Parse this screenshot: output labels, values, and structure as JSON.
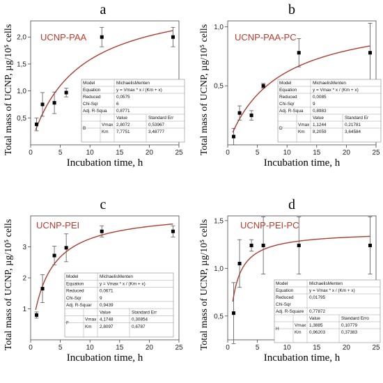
{
  "figure": {
    "panels": [
      "a",
      "b",
      "c",
      "d"
    ]
  },
  "colors": {
    "fit_curve": "#b03a2e",
    "panel_title": "#c0392b",
    "points": "#000000",
    "error_bars": "#555555",
    "axes": "#444444",
    "table_border": "#888888"
  },
  "chart_data": [
    {
      "type": "scatter",
      "panel_letter": "a",
      "annotation": "UCNP-PAA",
      "xlabel": "Incubation time, h",
      "ylabel": "Total mass of UCNP, µg/10⁵ cells",
      "xlim": [
        0,
        25
      ],
      "ylim": [
        0,
        2.3
      ],
      "xticks": [
        "0",
        "5",
        "10",
        "15",
        "20",
        "25"
      ],
      "yticks": [
        "0,5",
        "1,0",
        "1,5",
        "2,0"
      ],
      "ytick_values": [
        0.5,
        1.0,
        1.5,
        2.0
      ],
      "points": [
        {
          "x": 1,
          "y": 0.38,
          "err": 0.12
        },
        {
          "x": 2,
          "y": 0.75,
          "err": 0.22
        },
        {
          "x": 4,
          "y": 0.78,
          "err": 0.2
        },
        {
          "x": 6,
          "y": 0.97,
          "err": 0.08
        },
        {
          "x": 12,
          "y": 2.0,
          "err": 0.18
        },
        {
          "x": 24,
          "y": 2.0,
          "err": 0.18
        }
      ],
      "fit": {
        "model": "MichaelisMenten",
        "vmax": 2.8072,
        "km": 7.7751
      },
      "stats_table": {
        "model_label": "Model",
        "model_value": "MichaelisMenten",
        "equation_label": "Equation",
        "equation_value": "y = Vmax * x / (Km + x)",
        "chi_label": "Reduced Chi-Sqr",
        "chi_value": "0,0575",
        "chi_value2": "6",
        "r2_label": "Adj. R-Squa",
        "r2_value": "0,8771",
        "col_value": "Value",
        "col_err": "Standard Err",
        "row_group": "B",
        "vmax_label": "Vmax",
        "vmax_value": "2,8072",
        "vmax_err": "0,53967",
        "km_label": "Km",
        "km_value": "7,7751",
        "km_err": "3,48777"
      }
    },
    {
      "type": "scatter",
      "panel_letter": "b",
      "annotation": "UCNP-PAA-PC",
      "xlabel": "Incubation time, h",
      "ylabel": "Total mass of UCNP, µg/10⁵ cells",
      "xlim": [
        0,
        25
      ],
      "ylim": [
        0,
        1.05
      ],
      "xticks": [
        "0",
        "5",
        "10",
        "15",
        "20",
        "25"
      ],
      "yticks": [
        "0,5",
        "1,0"
      ],
      "ytick_values": [
        0.5,
        1.0
      ],
      "points": [
        {
          "x": 1,
          "y": 0.07,
          "err": 0.07
        },
        {
          "x": 2,
          "y": 0.27,
          "err": 0.06
        },
        {
          "x": 4,
          "y": 0.25,
          "err": 0.04
        },
        {
          "x": 6,
          "y": 0.5,
          "err": 0.02
        },
        {
          "x": 12,
          "y": 0.78,
          "err": 0.12
        },
        {
          "x": 24,
          "y": 0.78,
          "err": 0.25
        }
      ],
      "fit": {
        "model": "MichaelisMenten",
        "vmax": 1.1244,
        "km": 8.2059
      },
      "stats_table": {
        "model_label": "Model",
        "model_value": "MichaelisMenten",
        "equation_label": "Equation",
        "equation_value": "y = Vmax * x / (Km + x)",
        "chi_label": "Reduced Chi-Sqr",
        "chi_value": "0,0085",
        "chi_value2": "9",
        "r2_label": "Adj. R-Squa",
        "r2_value": "0,8983",
        "col_value": "Value",
        "col_err": "Standard Er",
        "row_group": "D",
        "vmax_label": "Vmax",
        "vmax_value": "1,1244",
        "vmax_err": "0,21781",
        "km_label": "Km",
        "km_value": "8,2059",
        "km_err": "3,64584"
      }
    },
    {
      "type": "scatter",
      "panel_letter": "c",
      "annotation": "UCNP-PEI",
      "xlabel": "Incubation time, h",
      "ylabel": "Total mass of UCNP, µg/10⁵ cells",
      "xlim": [
        0,
        25
      ],
      "ylim": [
        0,
        4.0
      ],
      "xticks": [
        "0",
        "5",
        "10",
        "15",
        "20",
        "25"
      ],
      "yticks": [
        "1",
        "2",
        "3"
      ],
      "ytick_values": [
        1,
        2,
        3
      ],
      "points": [
        {
          "x": 1,
          "y": 0.8,
          "err": 0.1
        },
        {
          "x": 2,
          "y": 1.65,
          "err": 0.45
        },
        {
          "x": 4,
          "y": 2.72,
          "err": 0.3
        },
        {
          "x": 6,
          "y": 2.97,
          "err": 0.45
        },
        {
          "x": 12,
          "y": 3.5,
          "err": 0.18
        },
        {
          "x": 24,
          "y": 3.5,
          "err": 0.18
        }
      ],
      "fit": {
        "model": "MichaelisMenten",
        "vmax": 4.1748,
        "km": 2.8097
      },
      "stats_table": {
        "model_label": "Model",
        "model_value": "MichaelisMenten",
        "equation_label": "Equation",
        "equation_value": "y = Vmax * x / (Km + x)",
        "chi_label": "Reduced Chi-Sqr",
        "chi_value": "0,0671",
        "chi_value2": "9",
        "r2_label": "Adj. R-Squar",
        "r2_value": "0,9439",
        "col_value": "Value",
        "col_err": "Standard Err",
        "row_group": "F",
        "vmax_label": "Vmax",
        "vmax_value": "4,1748",
        "vmax_err": "0,30854",
        "km_label": "Km",
        "km_value": "2,8097",
        "km_err": "0,6787"
      }
    },
    {
      "type": "scatter",
      "panel_letter": "d",
      "annotation": "UCNP-PEI-PC",
      "xlabel": "Incubation time, h",
      "ylabel": "Total mass of UCNP, µg/10⁵ cells",
      "xlim": [
        0,
        25
      ],
      "ylim": [
        0.25,
        1.55
      ],
      "xticks": [
        "0",
        "5",
        "10",
        "15",
        "20",
        "25"
      ],
      "yticks": [
        "0,5",
        "1,0",
        "1,5"
      ],
      "ytick_values": [
        0.5,
        1.0,
        1.5
      ],
      "points": [
        {
          "x": 1,
          "y": 0.53,
          "err": 0.32
        },
        {
          "x": 2,
          "y": 1.05,
          "err": 0.25
        },
        {
          "x": 4,
          "y": 1.24,
          "err": 0.06
        },
        {
          "x": 6,
          "y": 1.24,
          "err": 0.3
        },
        {
          "x": 12,
          "y": 1.24,
          "err": 0.3
        },
        {
          "x": 24,
          "y": 1.24,
          "err": 0.3
        }
      ],
      "fit": {
        "model": "MichaelisMenten",
        "vmax": 1.3885,
        "km": 0.96203
      },
      "stats_table": {
        "model_label": "Model",
        "model_value": "MichaelisMenten",
        "equation_label": "Equation",
        "equation_value": "y = Vmax * x / (Km + x)",
        "chi_label": "Reduced Chi-Sqr",
        "chi_value": "0,01795",
        "chi_value2": "",
        "r2_label": "Adj. R-Square",
        "r2_value": "0,77872",
        "col_value": "Value",
        "col_err": "Standard Erro",
        "row_group": "H",
        "vmax_label": "Vmax",
        "vmax_value": "1,3885",
        "vmax_err": "0,10779",
        "km_label": "Km",
        "km_value": "0,96203",
        "km_err": "0,37383"
      }
    }
  ]
}
